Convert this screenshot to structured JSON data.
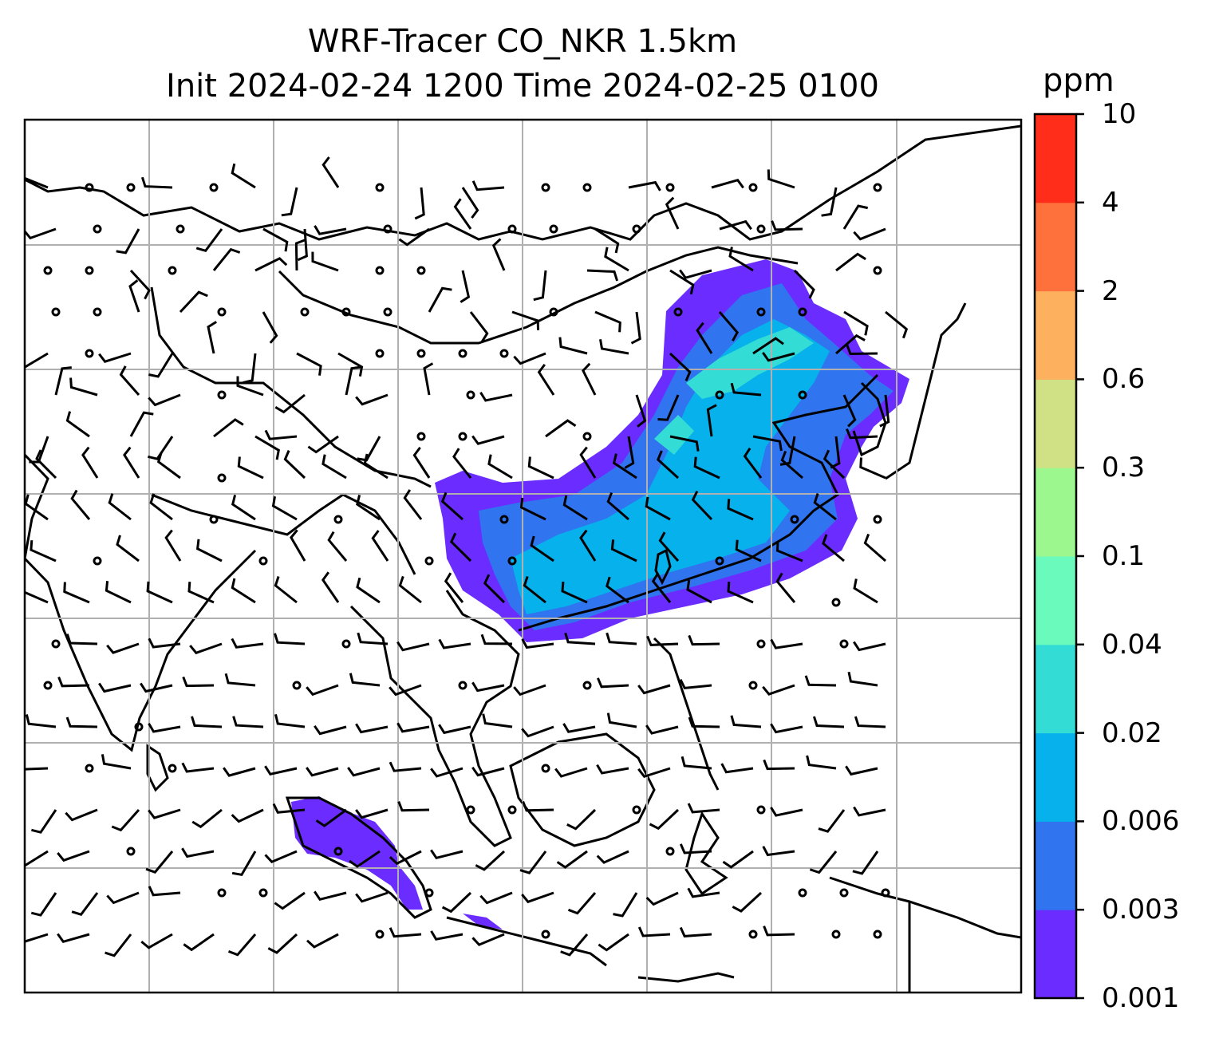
{
  "title_line1": "WRF-Tracer CO_NKR 1.5km",
  "title_line2": "Init 2024-02-24 1200 Time 2024-02-25 0100",
  "colorbar": {
    "unit": "ppm",
    "tick_labels": [
      "0.001",
      "0.003",
      "0.006",
      "0.02",
      "0.04",
      "0.1",
      "0.3",
      "0.6",
      "2",
      "4",
      "10"
    ],
    "colors": [
      "#6a2cff",
      "#3074f0",
      "#06b1ec",
      "#33dcd4",
      "#6afbbc",
      "#9cf88e",
      "#d0e084",
      "#fdb05e",
      "#fe703c",
      "#ff2d1a"
    ]
  },
  "map": {
    "gridlines": "on",
    "features": [
      "coastlines",
      "country-borders",
      "wind-barbs",
      "co-tracer-field"
    ]
  }
}
